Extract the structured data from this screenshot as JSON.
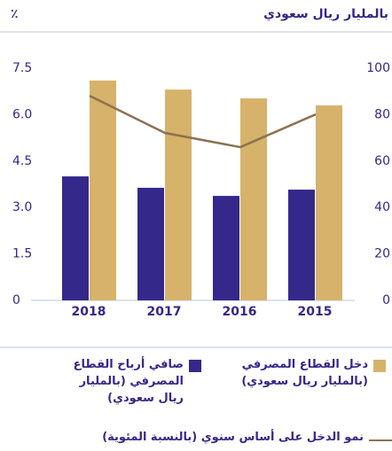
{
  "chart_data": {
    "type": "bar",
    "y_label": "٪",
    "y2_label": "بالمليار ريال سعودي",
    "categories": [
      "2018",
      "2017",
      "2016",
      "2015"
    ],
    "series": [
      {
        "name": "صافي أرباح القطاع المصرفي (بالمليار ريال سعودي)",
        "type": "bar",
        "axis": "y2",
        "color": "#34288a",
        "values": [
          53.4,
          48.5,
          45,
          47.7
        ]
      },
      {
        "name": "دخل القطاع المصرفي (بالمليار ريال سعودي)",
        "type": "bar",
        "axis": "y2",
        "color": "#d6b26a",
        "values": [
          94.7,
          90.8,
          87,
          84
        ]
      },
      {
        "name": "نمو الدخل على أساس سنوي (بالنسبة المئوية)",
        "type": "line",
        "axis": "y",
        "color": "#8c7252",
        "values": [
          6.61,
          5.41,
          4.95,
          6.01
        ]
      }
    ],
    "ylim": [
      0,
      7.5
    ],
    "yticks": [
      0,
      1.5,
      {
        "value": 3,
        "label": "3.0"
      },
      4.5,
      {
        "value": 6,
        "label": "6.0"
      },
      7.5
    ],
    "y2lim": [
      0,
      100
    ],
    "y2ticks": [
      0,
      20,
      40,
      60,
      80,
      100
    ]
  }
}
